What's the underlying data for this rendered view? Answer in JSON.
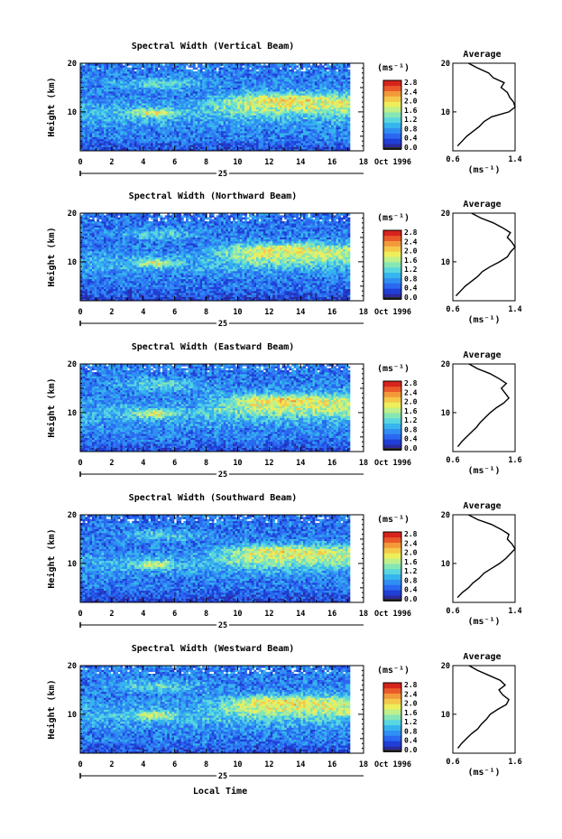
{
  "figure": {
    "xlabel": "Local Time",
    "date_day": "25",
    "date_month_year": "Oct 1996"
  },
  "colorbar_palette": [
    "#2a2aa0",
    "#1f3fd6",
    "#2a68f0",
    "#2f8ff2",
    "#36b4ee",
    "#5ad6e0",
    "#86e6b4",
    "#bff08a",
    "#eeee5a",
    "#f5c84a",
    "#f29a3a",
    "#ea5a2a",
    "#d6241c"
  ],
  "chart_data": [
    {
      "type": "heatmap",
      "title": "Spectral Width (Vertical Beam)",
      "ylabel": "Height (km)",
      "x_ticks": [
        "0",
        "2",
        "4",
        "6",
        "8",
        "10",
        "12",
        "14",
        "16",
        "18"
      ],
      "y_ticks": [
        "20",
        "10"
      ],
      "xlim": [
        0,
        18
      ],
      "ylim": [
        2,
        20
      ],
      "data_end_hour": 17,
      "colorbar": {
        "unit": "(ms⁻¹)",
        "ticks": [
          "2.8",
          "2.4",
          "2.0",
          "1.6",
          "1.2",
          "0.8",
          "0.4",
          "0.0"
        ],
        "range": [
          0.0,
          2.8
        ]
      },
      "average_profile": {
        "title": "Average",
        "xlabel": "(ms⁻¹)",
        "x_ticks": [
          "0.6",
          "1.4"
        ],
        "xlim": [
          0.6,
          1.4
        ],
        "y_ticks": [
          "20",
          "10"
        ],
        "height_km": [
          3,
          4,
          5,
          6,
          7,
          8,
          9,
          10,
          11,
          12,
          13,
          14,
          15,
          16,
          17,
          18,
          19,
          20
        ],
        "values": [
          0.66,
          0.72,
          0.78,
          0.86,
          0.94,
          1.0,
          1.1,
          1.32,
          1.4,
          1.38,
          1.33,
          1.3,
          1.22,
          1.26,
          1.12,
          1.06,
          0.92,
          0.8
        ]
      }
    },
    {
      "type": "heatmap",
      "title": "Spectral Width (Northward Beam)",
      "ylabel": "Height (km)",
      "x_ticks": [
        "0",
        "2",
        "4",
        "6",
        "8",
        "10",
        "12",
        "14",
        "16",
        "18"
      ],
      "y_ticks": [
        "20",
        "10"
      ],
      "xlim": [
        0,
        18
      ],
      "ylim": [
        2,
        20
      ],
      "data_end_hour": 17,
      "colorbar": {
        "unit": "(ms⁻¹)",
        "ticks": [
          "2.8",
          "2.4",
          "2.0",
          "1.6",
          "1.2",
          "0.8",
          "0.4",
          "0.0"
        ],
        "range": [
          0.0,
          2.8
        ]
      },
      "average_profile": {
        "title": "Average",
        "xlabel": "(ms⁻¹)",
        "x_ticks": [
          "0.6",
          "1.4"
        ],
        "xlim": [
          0.6,
          1.4
        ],
        "y_ticks": [
          "20",
          "10"
        ],
        "height_km": [
          3,
          4,
          5,
          6,
          7,
          8,
          9,
          10,
          11,
          12,
          13,
          14,
          15,
          16,
          17,
          18,
          19,
          20
        ],
        "values": [
          0.64,
          0.7,
          0.76,
          0.84,
          0.92,
          0.98,
          1.08,
          1.2,
          1.3,
          1.34,
          1.4,
          1.36,
          1.3,
          1.34,
          1.24,
          1.12,
          0.96,
          0.84
        ]
      }
    },
    {
      "type": "heatmap",
      "title": "Spectral Width (Eastward Beam)",
      "ylabel": "Height (km)",
      "x_ticks": [
        "0",
        "2",
        "4",
        "6",
        "8",
        "10",
        "12",
        "14",
        "16",
        "18"
      ],
      "y_ticks": [
        "20",
        "10"
      ],
      "xlim": [
        0,
        18
      ],
      "ylim": [
        2,
        20
      ],
      "data_end_hour": 17,
      "colorbar": {
        "unit": "(ms⁻¹)",
        "ticks": [
          "2.8",
          "2.4",
          "2.0",
          "1.6",
          "1.2",
          "0.8",
          "0.4",
          "0.0"
        ],
        "range": [
          0.0,
          2.8
        ]
      },
      "average_profile": {
        "title": "Average",
        "xlabel": "(ms⁻¹)",
        "x_ticks": [
          "0.6",
          "1.6"
        ],
        "xlim": [
          0.6,
          1.6
        ],
        "y_ticks": [
          "20",
          "10"
        ],
        "height_km": [
          3,
          4,
          5,
          6,
          7,
          8,
          9,
          10,
          11,
          12,
          13,
          14,
          15,
          16,
          17,
          18,
          19,
          20
        ],
        "values": [
          0.68,
          0.74,
          0.82,
          0.9,
          0.98,
          1.04,
          1.12,
          1.2,
          1.3,
          1.42,
          1.5,
          1.44,
          1.38,
          1.46,
          1.34,
          1.2,
          1.0,
          0.86
        ]
      }
    },
    {
      "type": "heatmap",
      "title": "Spectral Width (Southward Beam)",
      "ylabel": "Height (km)",
      "x_ticks": [
        "0",
        "2",
        "4",
        "6",
        "8",
        "10",
        "12",
        "14",
        "16",
        "18"
      ],
      "y_ticks": [
        "20",
        "10"
      ],
      "xlim": [
        0,
        18
      ],
      "ylim": [
        2,
        20
      ],
      "data_end_hour": 17,
      "colorbar": {
        "unit": "(ms⁻¹)",
        "ticks": [
          "2.8",
          "2.4",
          "2.0",
          "1.6",
          "1.2",
          "0.8",
          "0.4",
          "0.0"
        ],
        "range": [
          0.0,
          2.8
        ]
      },
      "average_profile": {
        "title": "Average",
        "xlabel": "(ms⁻¹)",
        "x_ticks": [
          "0.6",
          "1.4"
        ],
        "xlim": [
          0.6,
          1.4
        ],
        "y_ticks": [
          "20",
          "10"
        ],
        "height_km": [
          3,
          4,
          5,
          6,
          7,
          8,
          9,
          10,
          11,
          12,
          13,
          14,
          15,
          16,
          17,
          18,
          19,
          20
        ],
        "values": [
          0.66,
          0.72,
          0.8,
          0.86,
          0.94,
          1.0,
          1.1,
          1.2,
          1.28,
          1.34,
          1.4,
          1.36,
          1.3,
          1.32,
          1.22,
          1.1,
          0.92,
          0.8
        ]
      }
    },
    {
      "type": "heatmap",
      "title": "Spectral Width (Westward Beam)",
      "ylabel": "Height (km)",
      "x_ticks": [
        "0",
        "2",
        "4",
        "6",
        "8",
        "10",
        "12",
        "14",
        "16",
        "18"
      ],
      "y_ticks": [
        "20",
        "10"
      ],
      "xlim": [
        0,
        18
      ],
      "ylim": [
        2,
        20
      ],
      "data_end_hour": 17,
      "colorbar": {
        "unit": "(ms⁻¹)",
        "ticks": [
          "2.8",
          "2.4",
          "2.0",
          "1.6",
          "1.2",
          "0.8",
          "0.4",
          "0.0"
        ],
        "range": [
          0.0,
          2.8
        ]
      },
      "average_profile": {
        "title": "Average",
        "xlabel": "(ms⁻¹)",
        "x_ticks": [
          "0.6",
          "1.6"
        ],
        "xlim": [
          0.6,
          1.6
        ],
        "y_ticks": [
          "20",
          "10"
        ],
        "height_km": [
          3,
          4,
          5,
          6,
          7,
          8,
          9,
          10,
          11,
          12,
          13,
          14,
          15,
          16,
          17,
          18,
          19,
          20
        ],
        "values": [
          0.68,
          0.74,
          0.82,
          0.9,
          1.0,
          1.06,
          1.14,
          1.2,
          1.32,
          1.46,
          1.5,
          1.4,
          1.34,
          1.44,
          1.36,
          1.18,
          1.0,
          0.86
        ]
      }
    }
  ]
}
